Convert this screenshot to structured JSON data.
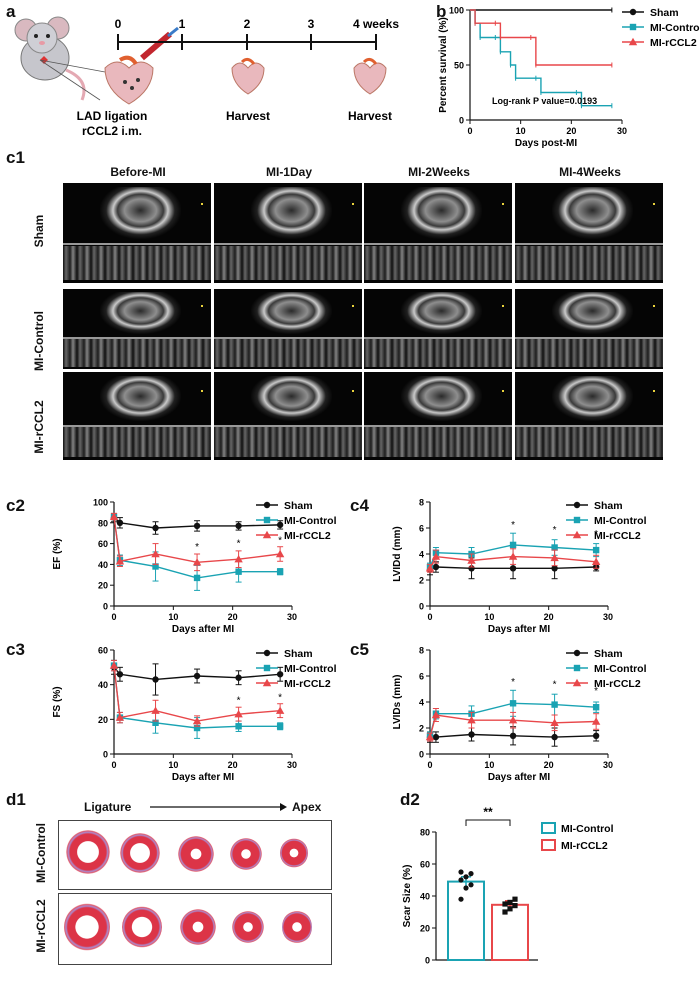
{
  "panels": {
    "a": "a",
    "b": "b",
    "c1": "c1",
    "c2": "c2",
    "c3": "c3",
    "c4": "c4",
    "c5": "c5",
    "d1": "d1",
    "d2": "d2"
  },
  "timeline": {
    "ticks": [
      "0",
      "1",
      "2",
      "3",
      "4 weeks"
    ],
    "event1_line1": "LAD ligation",
    "event1_line2": "rCCL2 i.m.",
    "event2": "Harvest",
    "event3": "Harvest"
  },
  "echo": {
    "columns": [
      "Before-MI",
      "MI-1Day",
      "MI-2Weeks",
      "MI-4Weeks"
    ],
    "rows": [
      "Sham",
      "MI-Control",
      "MI-rCCL2"
    ]
  },
  "legend": {
    "sham": "Sham",
    "control": "MI-Control",
    "rccl2": "MI-rCCL2"
  },
  "colors": {
    "sham": "#111111",
    "control": "#1aa3b3",
    "rccl2": "#e8474a"
  },
  "histology": {
    "ligature": "Ligature",
    "apex": "Apex",
    "rows": [
      "MI-Control",
      "MI-rCCL2"
    ]
  },
  "chart_data": [
    {
      "id": "b",
      "type": "line",
      "ylabel": "Percent survival (%)",
      "xlabel": "Days post-MI",
      "xlim": [
        0,
        30
      ],
      "ylim": [
        0,
        100
      ],
      "xticks": [
        0,
        10,
        20,
        30
      ],
      "yticks": [
        0,
        50,
        100
      ],
      "annotation": "Log-rank P value=0.0193",
      "series": [
        {
          "name": "Sham",
          "points": [
            [
              0,
              100
            ],
            [
              28,
              100
            ]
          ]
        },
        {
          "name": "MI-Control",
          "points": [
            [
              0,
              100
            ],
            [
              1,
              88
            ],
            [
              2,
              75
            ],
            [
              5,
              75
            ],
            [
              6,
              62
            ],
            [
              8,
              50
            ],
            [
              9,
              38
            ],
            [
              13,
              38
            ],
            [
              14,
              25
            ],
            [
              21,
              25
            ],
            [
              22,
              13
            ],
            [
              28,
              13
            ]
          ]
        },
        {
          "name": "MI-rCCL2",
          "points": [
            [
              0,
              100
            ],
            [
              1,
              88
            ],
            [
              5,
              88
            ],
            [
              6,
              75
            ],
            [
              12,
              75
            ],
            [
              13,
              50
            ],
            [
              28,
              50
            ]
          ]
        }
      ]
    },
    {
      "id": "c2",
      "type": "line",
      "ylabel": "EF (%)",
      "xlabel": "Days after MI",
      "xlim": [
        0,
        30
      ],
      "ylim": [
        0,
        100
      ],
      "xticks": [
        0,
        10,
        20,
        30
      ],
      "yticks": [
        0,
        20,
        40,
        60,
        80,
        100
      ],
      "x": [
        0,
        1,
        7,
        14,
        21,
        28
      ],
      "series": [
        {
          "name": "Sham",
          "values": [
            85,
            80,
            75,
            77,
            77,
            78
          ],
          "err": [
            4,
            5,
            6,
            5,
            4,
            4
          ]
        },
        {
          "name": "MI-Control",
          "values": [
            86,
            44,
            38,
            27,
            33,
            33
          ],
          "err": [
            3,
            5,
            14,
            12,
            10,
            3
          ]
        },
        {
          "name": "MI-rCCL2",
          "values": [
            86,
            43,
            50,
            42,
            45,
            50
          ],
          "err": [
            3,
            5,
            10,
            8,
            8,
            7
          ]
        }
      ],
      "stars": [
        {
          "x": 14,
          "y": 54
        },
        {
          "x": 21,
          "y": 57
        },
        {
          "x": 28,
          "y": 60
        }
      ]
    },
    {
      "id": "c3",
      "type": "line",
      "ylabel": "FS (%)",
      "xlabel": "Days after MI",
      "xlim": [
        0,
        30
      ],
      "ylim": [
        0,
        60
      ],
      "xticks": [
        0,
        10,
        20,
        30
      ],
      "yticks": [
        0,
        20,
        40,
        60
      ],
      "x": [
        0,
        1,
        7,
        14,
        21,
        28
      ],
      "series": [
        {
          "name": "Sham",
          "values": [
            50,
            46,
            43,
            45,
            44,
            46
          ],
          "err": [
            4,
            4,
            9,
            4,
            4,
            4
          ]
        },
        {
          "name": "MI-Control",
          "values": [
            51,
            21,
            18,
            15,
            16,
            16
          ],
          "err": [
            3,
            3,
            6,
            6,
            3,
            2
          ]
        },
        {
          "name": "MI-rCCL2",
          "values": [
            51,
            21,
            25,
            19,
            23,
            25
          ],
          "err": [
            3,
            3,
            6,
            3,
            4,
            4
          ]
        }
      ],
      "stars": [
        {
          "x": 21,
          "y": 29
        },
        {
          "x": 28,
          "y": 31
        }
      ]
    },
    {
      "id": "c4",
      "type": "line",
      "ylabel": "LVIDd (mm)",
      "xlabel": "Days after MI",
      "xlim": [
        0,
        30
      ],
      "ylim": [
        0,
        8
      ],
      "xticks": [
        0,
        10,
        20,
        30
      ],
      "yticks": [
        0,
        2,
        4,
        6,
        8
      ],
      "x": [
        0,
        1,
        7,
        14,
        21,
        28
      ],
      "series": [
        {
          "name": "Sham",
          "values": [
            2.8,
            3.0,
            2.9,
            2.9,
            2.9,
            3.0
          ],
          "err": [
            0.4,
            0.4,
            0.8,
            0.8,
            0.8,
            0.3
          ]
        },
        {
          "name": "MI-Control",
          "values": [
            3.0,
            4.1,
            4.0,
            4.7,
            4.5,
            4.3
          ],
          "err": [
            0.3,
            0.4,
            0.5,
            0.9,
            0.6,
            0.5
          ]
        },
        {
          "name": "MI-rCCL2",
          "values": [
            2.9,
            3.8,
            3.5,
            3.8,
            3.7,
            3.4
          ],
          "err": [
            0.3,
            0.5,
            0.5,
            0.6,
            0.6,
            0.5
          ]
        }
      ],
      "stars": [
        {
          "x": 14,
          "y": 6.0
        },
        {
          "x": 21,
          "y": 5.6
        },
        {
          "x": 28,
          "y": 5.3
        }
      ]
    },
    {
      "id": "c5",
      "type": "line",
      "ylabel": "LVIDs (mm)",
      "xlabel": "Days after MI",
      "xlim": [
        0,
        30
      ],
      "ylim": [
        0,
        8
      ],
      "xticks": [
        0,
        10,
        20,
        30
      ],
      "yticks": [
        0,
        2,
        4,
        6,
        8
      ],
      "x": [
        0,
        1,
        7,
        14,
        21,
        28
      ],
      "series": [
        {
          "name": "Sham",
          "values": [
            1.3,
            1.3,
            1.5,
            1.4,
            1.3,
            1.4
          ],
          "err": [
            0.4,
            0.4,
            0.5,
            0.7,
            0.7,
            0.4
          ]
        },
        {
          "name": "MI-Control",
          "values": [
            1.4,
            3.1,
            3.1,
            3.9,
            3.8,
            3.6
          ],
          "err": [
            0.3,
            0.4,
            0.6,
            1.0,
            0.8,
            0.4
          ]
        },
        {
          "name": "MI-rCCL2",
          "values": [
            1.3,
            3.0,
            2.6,
            2.6,
            2.4,
            2.5
          ],
          "err": [
            0.3,
            0.5,
            0.6,
            0.6,
            0.6,
            0.6
          ]
        }
      ],
      "stars": [
        {
          "x": 14,
          "y": 5.3
        },
        {
          "x": 21,
          "y": 5.1
        },
        {
          "x": 28,
          "y": 4.6
        }
      ]
    },
    {
      "id": "d2",
      "type": "bar",
      "ylabel": "Scar Size (%)",
      "categories": [
        "MI-Control",
        "MI-rCCL2"
      ],
      "values": [
        49,
        34.5
      ],
      "err": [
        3,
        2.5
      ],
      "ylim": [
        0,
        80
      ],
      "yticks": [
        0,
        20,
        40,
        60,
        80
      ],
      "points": [
        [
          38,
          45,
          47,
          50,
          52,
          54,
          55
        ],
        [
          30,
          32,
          34,
          35,
          36,
          38
        ]
      ],
      "significance": "**"
    }
  ]
}
